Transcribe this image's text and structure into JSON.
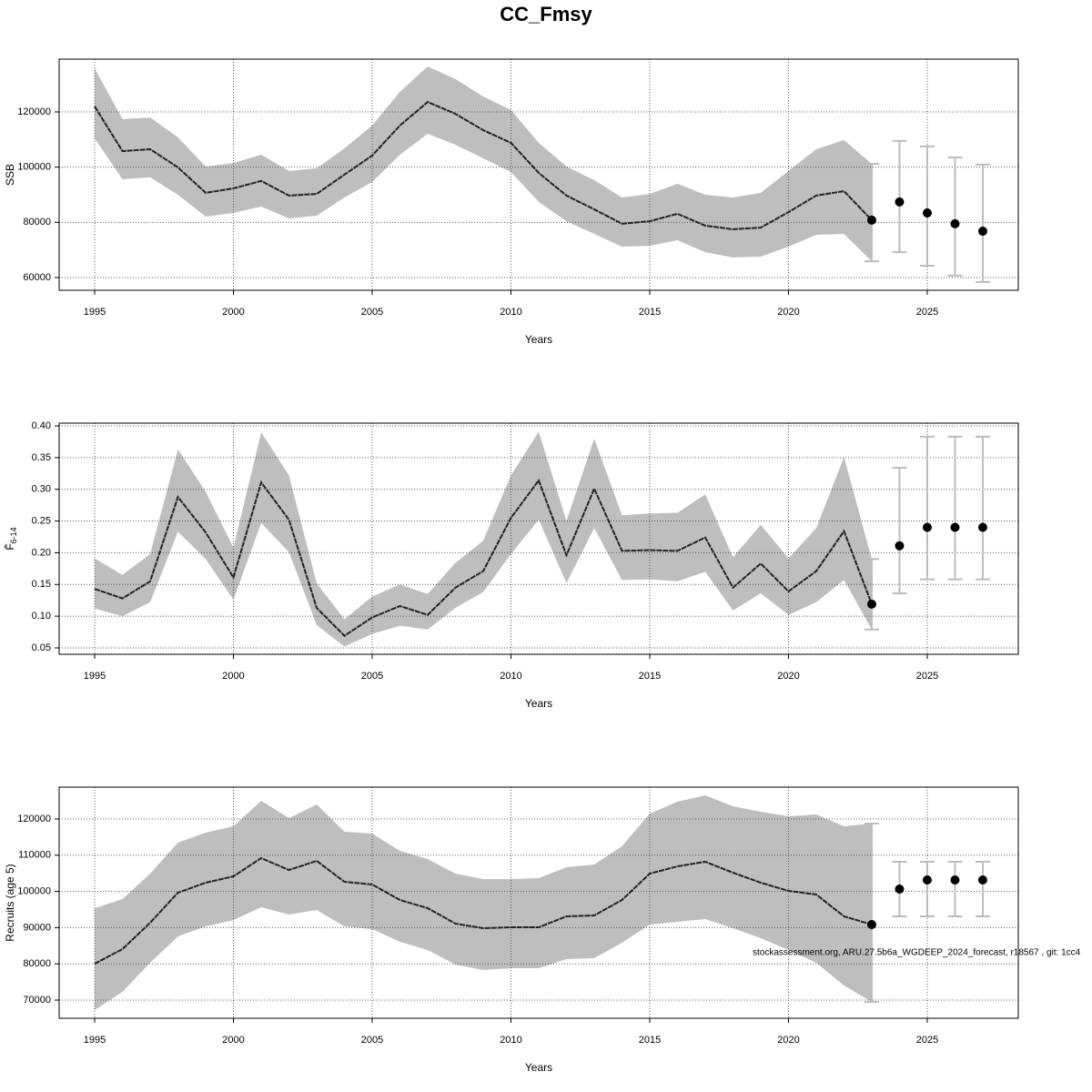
{
  "title": "CC_Fmsy",
  "footnote": "stockassessment.org, ARU.27.5b6a_WGDEEP_2024_forecast, r18567 , git: 1cc4",
  "chart_data": [
    {
      "type": "line",
      "ylabel": "SSB",
      "xlabel": "Years",
      "x": [
        1995,
        1996,
        1997,
        1998,
        1999,
        2000,
        2001,
        2002,
        2003,
        2004,
        2005,
        2006,
        2007,
        2008,
        2009,
        2010,
        2011,
        2012,
        2013,
        2014,
        2015,
        2016,
        2017,
        2018,
        2019,
        2020,
        2021,
        2022,
        2023
      ],
      "values": [
        122000,
        105800,
        106500,
        99900,
        90700,
        92300,
        95000,
        89700,
        90300,
        97300,
        104200,
        115100,
        123600,
        119300,
        113400,
        108800,
        97900,
        89700,
        84700,
        79500,
        80400,
        83100,
        78800,
        77500,
        78100,
        83700,
        89700,
        91300,
        80800
      ],
      "upper": [
        135800,
        117400,
        118000,
        110800,
        100200,
        101500,
        104500,
        98600,
        99600,
        106800,
        115100,
        127300,
        136500,
        131900,
        125600,
        120700,
        108800,
        100200,
        95300,
        89000,
        90300,
        94000,
        90000,
        89000,
        90700,
        98600,
        106500,
        109800,
        101200
      ],
      "lower": [
        110400,
        95600,
        96300,
        90000,
        82100,
        83400,
        85700,
        81400,
        82400,
        89000,
        94600,
        104500,
        112100,
        108100,
        103200,
        98200,
        87400,
        80400,
        75800,
        71200,
        71500,
        73500,
        69200,
        67300,
        67600,
        71200,
        75500,
        75800,
        65900
      ],
      "forecast_x": [
        2023,
        2024,
        2025,
        2026,
        2027
      ],
      "forecast_values": [
        80800,
        87400,
        83400,
        79500,
        76800
      ],
      "forecast_upper": [
        101200,
        109500,
        107500,
        103500,
        100900
      ],
      "forecast_lower": [
        65900,
        69200,
        64300,
        60700,
        58400
      ],
      "xlim": [
        1993.72,
        2028.28
      ],
      "xticks": [
        1995,
        2000,
        2005,
        2010,
        2015,
        2020,
        2025
      ],
      "ylim": [
        55385,
        139121
      ],
      "yticks": [
        60000,
        80000,
        100000,
        120000
      ],
      "grid": true,
      "band_color": "#bebebe",
      "line_color": "#222222",
      "point_color": "#000000",
      "errorbar_color": "#bdbdbd"
    },
    {
      "type": "line",
      "ylabel": "F̄",
      "ylabel_sub": "6-14",
      "xlabel": "Years",
      "x": [
        1995,
        1996,
        1997,
        1998,
        1999,
        2000,
        2001,
        2002,
        2003,
        2004,
        2005,
        2006,
        2007,
        2008,
        2009,
        2010,
        2011,
        2012,
        2013,
        2014,
        2015,
        2016,
        2017,
        2018,
        2019,
        2020,
        2021,
        2022,
        2023
      ],
      "values": [
        0.143,
        0.128,
        0.155,
        0.288,
        0.232,
        0.161,
        0.311,
        0.252,
        0.113,
        0.069,
        0.098,
        0.116,
        0.102,
        0.145,
        0.171,
        0.255,
        0.314,
        0.196,
        0.301,
        0.203,
        0.204,
        0.203,
        0.224,
        0.145,
        0.183,
        0.139,
        0.171,
        0.234,
        0.119
      ],
      "upper": [
        0.191,
        0.165,
        0.198,
        0.363,
        0.296,
        0.208,
        0.39,
        0.322,
        0.152,
        0.095,
        0.131,
        0.15,
        0.135,
        0.184,
        0.219,
        0.322,
        0.391,
        0.25,
        0.38,
        0.259,
        0.262,
        0.263,
        0.292,
        0.193,
        0.244,
        0.191,
        0.239,
        0.351,
        0.19
      ],
      "lower": [
        0.112,
        0.1,
        0.122,
        0.233,
        0.19,
        0.126,
        0.247,
        0.201,
        0.086,
        0.052,
        0.072,
        0.085,
        0.079,
        0.113,
        0.138,
        0.198,
        0.252,
        0.152,
        0.239,
        0.157,
        0.158,
        0.155,
        0.17,
        0.109,
        0.136,
        0.102,
        0.122,
        0.157,
        0.079
      ],
      "forecast_x": [
        2023,
        2024,
        2025,
        2026,
        2027
      ],
      "forecast_values": [
        0.119,
        0.211,
        0.24,
        0.24,
        0.24
      ],
      "forecast_upper": [
        0.19,
        0.334,
        0.383,
        0.383,
        0.383
      ],
      "forecast_lower": [
        0.079,
        0.136,
        0.158,
        0.158,
        0.158
      ],
      "xlim": [
        1993.72,
        2028.28
      ],
      "xticks": [
        1995,
        2000,
        2005,
        2010,
        2015,
        2020,
        2025
      ],
      "ylim": [
        0.0399,
        0.4043
      ],
      "yticks": [
        {
          "value": 0.05,
          "label": "0.05"
        },
        {
          "value": 0.1,
          "label": "0.10"
        },
        {
          "value": 0.15,
          "label": "0.15"
        },
        {
          "value": 0.2,
          "label": "0.20"
        },
        {
          "value": 0.25,
          "label": "0.25"
        },
        {
          "value": 0.3,
          "label": "0.30"
        },
        {
          "value": 0.35,
          "label": "0.35"
        },
        {
          "value": 0.4,
          "label": "0.40"
        }
      ],
      "grid": true,
      "band_color": "#bebebe",
      "line_color": "#222222",
      "point_color": "#000000",
      "errorbar_color": "#bdbdbd"
    },
    {
      "type": "line",
      "ylabel": "Recruits (age 5)",
      "xlabel": "Years",
      "x": [
        1995,
        1996,
        1997,
        1998,
        1999,
        2000,
        2001,
        2002,
        2003,
        2004,
        2005,
        2006,
        2007,
        2008,
        2009,
        2010,
        2011,
        2012,
        2013,
        2014,
        2015,
        2016,
        2017,
        2018,
        2019,
        2020,
        2021,
        2022,
        2023
      ],
      "values": [
        80050,
        84070,
        91360,
        99650,
        102410,
        104170,
        109200,
        105930,
        108440,
        102660,
        101910,
        97640,
        95380,
        91110,
        89850,
        90100,
        90100,
        93120,
        93370,
        97640,
        104920,
        106930,
        108190,
        105180,
        102410,
        100150,
        99150,
        93120,
        90850
      ],
      "upper": [
        95380,
        97890,
        104920,
        113470,
        116230,
        117990,
        125030,
        120250,
        124020,
        116480,
        115980,
        111210,
        108940,
        104920,
        103420,
        103420,
        103670,
        106680,
        107440,
        112460,
        121510,
        124770,
        126530,
        123520,
        122010,
        120750,
        121260,
        117990,
        118740
      ],
      "lower": [
        67240,
        72260,
        80300,
        87590,
        90350,
        92110,
        95630,
        93620,
        94870,
        90350,
        89600,
        86080,
        83820,
        79800,
        78290,
        78790,
        78790,
        81310,
        81560,
        85830,
        90850,
        91610,
        92360,
        89850,
        87090,
        83820,
        80300,
        74020,
        69500
      ],
      "forecast_x": [
        2023,
        2024,
        2025,
        2026,
        2027
      ],
      "forecast_values": [
        90850,
        100650,
        103170,
        103170,
        103170
      ],
      "forecast_upper": [
        118740,
        108190,
        108190,
        108190,
        108190
      ],
      "forecast_lower": [
        69500,
        93120,
        93120,
        93120,
        93120
      ],
      "xlim": [
        1993.72,
        2028.28
      ],
      "xticks": [
        1995,
        2000,
        2005,
        2010,
        2015,
        2020,
        2025
      ],
      "ylim": [
        64975,
        128794
      ],
      "yticks": [
        70000,
        80000,
        90000,
        100000,
        110000,
        120000
      ],
      "grid": true,
      "band_color": "#bebebe",
      "line_color": "#222222",
      "point_color": "#000000",
      "errorbar_color": "#bdbdbd"
    }
  ]
}
